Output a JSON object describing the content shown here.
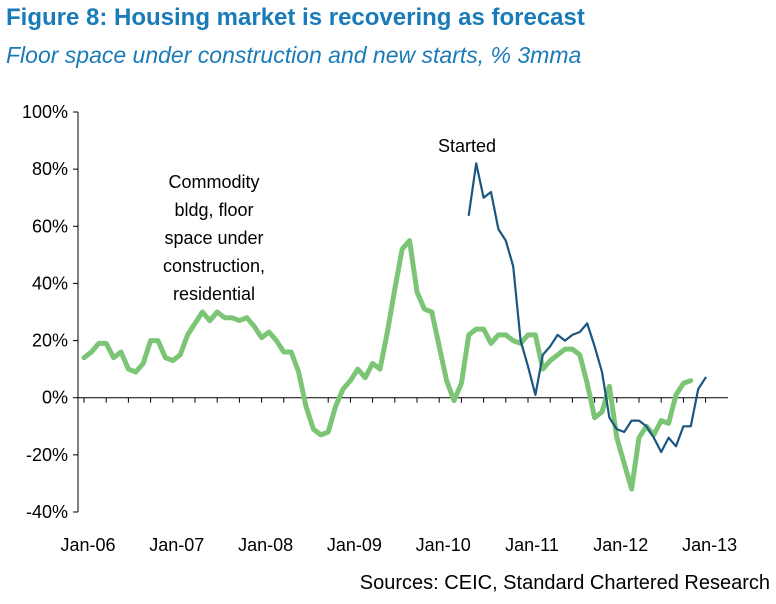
{
  "title": "Figure 8: Housing market is recovering as forecast",
  "subtitle": "Floor space under construction and new starts, % 3mma",
  "source": "Sources: CEIC, Standard Chartered Research",
  "colors": {
    "title": "#1a7bb9",
    "construction": "#7cc576",
    "started": "#1b5680"
  },
  "chart_data": {
    "type": "line",
    "ylim": [
      -40,
      100
    ],
    "yticks": [
      -40,
      -20,
      0,
      20,
      40,
      60,
      80,
      100
    ],
    "ytick_labels": [
      "-40%",
      "-20%",
      "0%",
      "20%",
      "40%",
      "60%",
      "80%",
      "100%"
    ],
    "xticks": [
      "Jan-06",
      "Jan-07",
      "Jan-08",
      "Jan-09",
      "Jan-10",
      "Jan-11",
      "Jan-12",
      "Jan-13"
    ],
    "x_range": [
      "2006-01",
      "2013-02"
    ],
    "grid": false,
    "annotations": [
      {
        "text": [
          "Commodity",
          "bldg, floor",
          "space under",
          "construction,",
          "residential"
        ],
        "series": "construction"
      },
      {
        "text": [
          "Started"
        ],
        "series": "started"
      }
    ],
    "series": [
      {
        "id": "construction",
        "start": "2006-01",
        "values": [
          14,
          16,
          19,
          19,
          14,
          16,
          10,
          9,
          12,
          20,
          20,
          14,
          13,
          15,
          22,
          26,
          30,
          27,
          30,
          28,
          28,
          27,
          28,
          25,
          21,
          23,
          20,
          16,
          16,
          9,
          -3,
          -11,
          -13,
          -12,
          -3,
          3,
          6,
          10,
          7,
          12,
          10,
          23,
          38,
          52,
          55,
          37,
          31,
          30,
          18,
          6,
          -1,
          5,
          22,
          24,
          24,
          19,
          22,
          22,
          20,
          19,
          22,
          22,
          10,
          13,
          15,
          17,
          17,
          15,
          5,
          -7,
          -5,
          4,
          -14,
          -23,
          -32,
          -14,
          -10,
          -13,
          -8,
          -9,
          1,
          5,
          6
        ]
      },
      {
        "id": "started",
        "start": "2010-05",
        "values": [
          64,
          82,
          70,
          72,
          59,
          55,
          46,
          20,
          11,
          1,
          15,
          18,
          22,
          20,
          22,
          23,
          26,
          18,
          9,
          -7,
          -11,
          -12,
          -8,
          -8,
          -10,
          -14,
          -19,
          -14,
          -17,
          -10,
          -10,
          3,
          7
        ]
      }
    ]
  }
}
